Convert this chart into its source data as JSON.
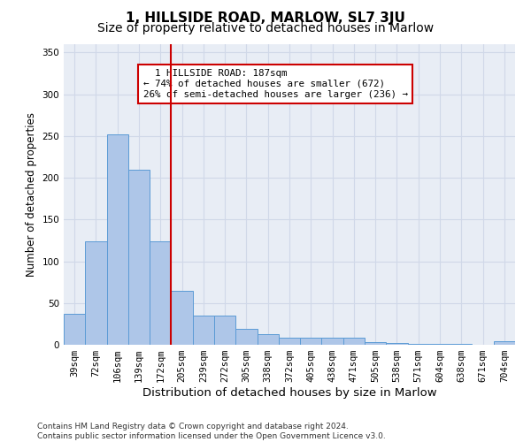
{
  "title": "1, HILLSIDE ROAD, MARLOW, SL7 3JU",
  "subtitle": "Size of property relative to detached houses in Marlow",
  "xlabel": "Distribution of detached houses by size in Marlow",
  "ylabel": "Number of detached properties",
  "categories": [
    "39sqm",
    "72sqm",
    "106sqm",
    "139sqm",
    "172sqm",
    "205sqm",
    "239sqm",
    "272sqm",
    "305sqm",
    "338sqm",
    "372sqm",
    "405sqm",
    "438sqm",
    "471sqm",
    "505sqm",
    "538sqm",
    "571sqm",
    "604sqm",
    "638sqm",
    "671sqm",
    "704sqm"
  ],
  "values": [
    37,
    124,
    252,
    210,
    124,
    65,
    35,
    35,
    19,
    13,
    9,
    9,
    8,
    8,
    3,
    2,
    1,
    1,
    1,
    0,
    4
  ],
  "bar_color": "#aec6e8",
  "bar_edge_color": "#5b9bd5",
  "grid_color": "#d0d8e8",
  "background_color": "#e8edf5",
  "vline_x": 4.5,
  "vline_color": "#cc0000",
  "annotation_text": "  1 HILLSIDE ROAD: 187sqm\n← 74% of detached houses are smaller (672)\n26% of semi-detached houses are larger (236) →",
  "annotation_box_color": "#ffffff",
  "annotation_box_edge": "#cc0000",
  "ylim": [
    0,
    360
  ],
  "yticks": [
    0,
    50,
    100,
    150,
    200,
    250,
    300,
    350
  ],
  "footer": "Contains HM Land Registry data © Crown copyright and database right 2024.\nContains public sector information licensed under the Open Government Licence v3.0.",
  "title_fontsize": 11,
  "subtitle_fontsize": 10,
  "xlabel_fontsize": 9.5,
  "ylabel_fontsize": 8.5,
  "tick_fontsize": 7.5,
  "footer_fontsize": 6.5
}
